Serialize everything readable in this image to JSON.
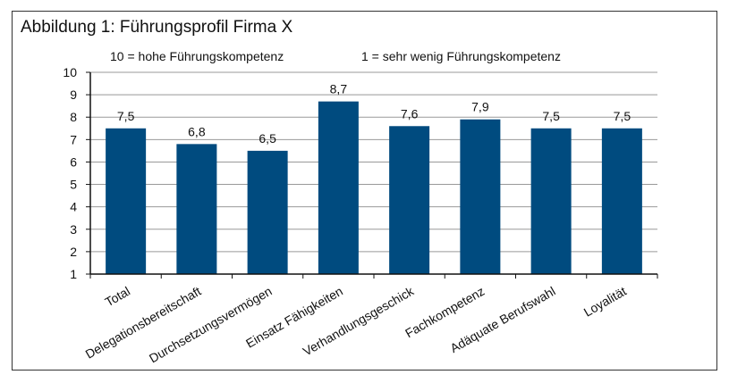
{
  "chart_data": {
    "type": "bar",
    "title": "Abbildung 1: Führungsprofil Firma X",
    "annotations": [
      "10 = hohe Führungskompetenz",
      "1 = sehr wenig Führungskompetenz"
    ],
    "categories": [
      "Total",
      "Delegationsbereitschaft",
      "Durchsetzungsvermögen",
      "Einsatz Fähigkeiten",
      "Verhandlungsgeschick",
      "Fachkompetenz",
      "Adäquate Berufswahl",
      "Loyalität"
    ],
    "values": [
      7.5,
      6.8,
      6.5,
      8.7,
      7.6,
      7.9,
      7.5,
      7.5
    ],
    "data_labels": [
      "7,5",
      "6,8",
      "6,5",
      "8,7",
      "7,6",
      "7,9",
      "7,5",
      "7,5"
    ],
    "ylim": [
      1,
      10
    ],
    "yticks": [
      1,
      2,
      3,
      4,
      5,
      6,
      7,
      8,
      9,
      10
    ],
    "grid": true,
    "legend": "none",
    "bar_color": "#004b7f"
  }
}
